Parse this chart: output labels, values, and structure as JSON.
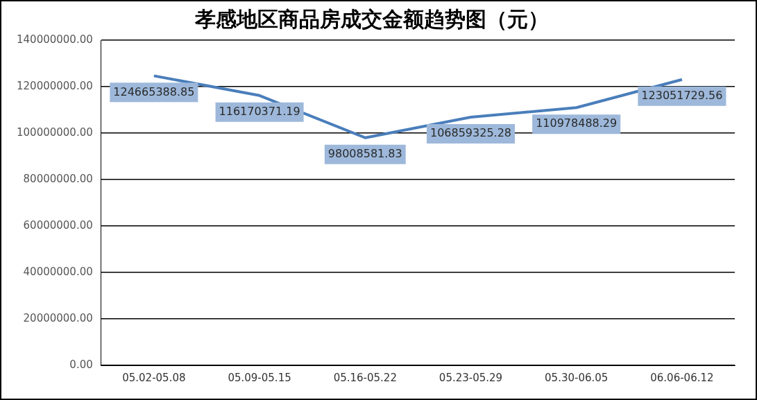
{
  "chart_data": {
    "type": "line",
    "title": "孝感地区商品房成交金额趋势图（元）",
    "categories": [
      "05.02-05.08",
      "05.09-05.15",
      "05.16-05.22",
      "05.23-05.29",
      "05.30-06.05",
      "06.06-06.12"
    ],
    "series": [
      {
        "color": "#4a7ebb",
        "values": [
          124665388.85,
          116170371.19,
          98008581.83,
          106859325.28,
          110978488.29,
          123051729.56
        ]
      }
    ],
    "ylim": [
      0,
      140000000
    ],
    "yticks": [
      {
        "value": 0,
        "label": "0.00"
      },
      {
        "value": 20000000,
        "label": "20000000.00"
      },
      {
        "value": 40000000,
        "label": "40000000.00"
      },
      {
        "value": 60000000,
        "label": "60000000.00"
      },
      {
        "value": 80000000,
        "label": "80000000.00"
      },
      {
        "value": 100000000,
        "label": "100000000.00"
      },
      {
        "value": 120000000,
        "label": "120000000.00"
      },
      {
        "value": 140000000,
        "label": "140000000.00"
      }
    ],
    "grid": "y",
    "legend": false,
    "marker": "none",
    "line_style": "solid",
    "data_labels": true
  }
}
